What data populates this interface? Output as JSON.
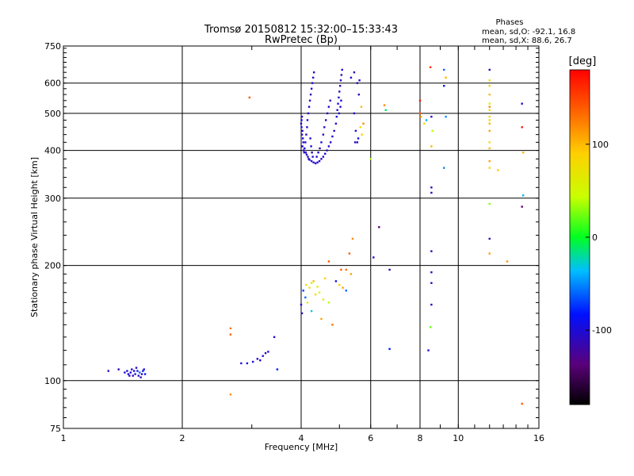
{
  "chart_data": {
    "type": "scatter",
    "title": "Tromsø 20150812 15:32:00–15:33:43",
    "subtitle": "RwPretec (Bp)",
    "info": {
      "heading": "Phases",
      "line1": "mean, sd,O:  -92.1, 16.8",
      "line2": "mean, sd,X:   88.6, 26.7"
    },
    "xlabel": "Frequency [MHz]",
    "ylabel": "Stationary phase Virtual Height [km]",
    "x_scale": "log",
    "y_scale": "log",
    "xlim": [
      1,
      16
    ],
    "ylim": [
      75,
      750
    ],
    "x_ticks": [
      1,
      2,
      4,
      6,
      8,
      10,
      16
    ],
    "y_ticks": [
      75,
      100,
      200,
      300,
      400,
      500,
      600,
      750
    ],
    "grid": true,
    "colorbar": {
      "label": "[deg]",
      "range": [
        -180,
        180
      ],
      "ticks": [
        100,
        0,
        -100
      ]
    },
    "points": [
      [
        1.3,
        106,
        -105
      ],
      [
        1.38,
        107,
        -110
      ],
      [
        1.43,
        105,
        -100
      ],
      [
        1.46,
        104,
        -105
      ],
      [
        1.48,
        105,
        -95
      ],
      [
        1.5,
        103,
        -110
      ],
      [
        1.52,
        104,
        -100
      ],
      [
        1.54,
        106,
        -80
      ],
      [
        1.56,
        105,
        -60
      ],
      [
        1.55,
        103,
        -105
      ],
      [
        1.58,
        104,
        -100
      ],
      [
        1.6,
        107,
        -90
      ],
      [
        1.49,
        107,
        -105
      ],
      [
        1.53,
        108,
        -110
      ],
      [
        1.57,
        102,
        -115
      ],
      [
        1.45,
        106,
        -100
      ],
      [
        1.51,
        106,
        -100
      ],
      [
        1.61,
        104,
        -95
      ],
      [
        1.47,
        103,
        -108
      ],
      [
        1.59,
        106,
        -100
      ],
      [
        2.65,
        137,
        130
      ],
      [
        2.65,
        132,
        140
      ],
      [
        2.65,
        92,
        120
      ],
      [
        2.82,
        111,
        -100
      ],
      [
        2.92,
        111,
        -95
      ],
      [
        3.02,
        112,
        -100
      ],
      [
        3.1,
        114,
        -105
      ],
      [
        3.15,
        113,
        -100
      ],
      [
        3.2,
        116,
        -105
      ],
      [
        3.25,
        118,
        -110
      ],
      [
        3.3,
        119,
        -100
      ],
      [
        3.42,
        130,
        -100
      ],
      [
        3.48,
        107,
        -80
      ],
      [
        2.96,
        550,
        140
      ],
      [
        4.0,
        158,
        -100
      ],
      [
        4.02,
        150,
        -110
      ],
      [
        4.05,
        172,
        -70
      ],
      [
        4.1,
        165,
        -60
      ],
      [
        4.12,
        178,
        80
      ],
      [
        4.15,
        160,
        50
      ],
      [
        4.2,
        175,
        70
      ],
      [
        4.25,
        180,
        60
      ],
      [
        4.3,
        182,
        100
      ],
      [
        4.35,
        168,
        80
      ],
      [
        4.4,
        176,
        60
      ],
      [
        4.45,
        170,
        50
      ],
      [
        4.5,
        145,
        110
      ],
      [
        4.6,
        185,
        90
      ],
      [
        4.7,
        160,
        40
      ],
      [
        4.8,
        140,
        130
      ],
      [
        4.9,
        182,
        -90
      ],
      [
        5.0,
        178,
        90
      ],
      [
        5.1,
        175,
        110
      ],
      [
        5.2,
        195,
        130
      ],
      [
        5.3,
        215,
        140
      ],
      [
        5.35,
        190,
        110
      ],
      [
        5.4,
        235,
        120
      ],
      [
        5.2,
        172,
        -60
      ],
      [
        4.7,
        205,
        140
      ],
      [
        5.05,
        195,
        140
      ],
      [
        4.55,
        163,
        60
      ],
      [
        4.25,
        152,
        -30
      ],
      [
        4.0,
        470,
        -110
      ],
      [
        4.01,
        480,
        -100
      ],
      [
        4.02,
        490,
        -105
      ],
      [
        4.01,
        460,
        -95
      ],
      [
        4.03,
        450,
        -100
      ],
      [
        4.02,
        440,
        -110
      ],
      [
        4.04,
        430,
        -100
      ],
      [
        4.05,
        420,
        -105
      ],
      [
        4.03,
        410,
        -100
      ],
      [
        4.06,
        400,
        -110
      ],
      [
        4.07,
        395,
        -100
      ],
      [
        4.08,
        405,
        -95
      ],
      [
        4.1,
        420,
        -100
      ],
      [
        4.12,
        440,
        -105
      ],
      [
        4.14,
        460,
        -100
      ],
      [
        4.11,
        395,
        -110
      ],
      [
        4.13,
        390,
        -100
      ],
      [
        4.16,
        385,
        -105
      ],
      [
        4.18,
        380,
        -110
      ],
      [
        4.2,
        378,
        -100
      ],
      [
        4.25,
        375,
        -105
      ],
      [
        4.3,
        372,
        -110
      ],
      [
        4.35,
        370,
        -100
      ],
      [
        4.4,
        372,
        -105
      ],
      [
        4.45,
        375,
        -100
      ],
      [
        4.5,
        380,
        -110
      ],
      [
        4.55,
        385,
        -105
      ],
      [
        4.6,
        392,
        -100
      ],
      [
        4.65,
        400,
        -110
      ],
      [
        4.7,
        410,
        -100
      ],
      [
        4.75,
        420,
        -105
      ],
      [
        4.8,
        435,
        -100
      ],
      [
        4.85,
        450,
        -110
      ],
      [
        4.9,
        470,
        -105
      ],
      [
        4.92,
        490,
        -100
      ],
      [
        4.94,
        510,
        -110
      ],
      [
        4.96,
        530,
        -100
      ],
      [
        4.98,
        550,
        -105
      ],
      [
        5.0,
        570,
        -110
      ],
      [
        5.02,
        590,
        -100
      ],
      [
        5.04,
        610,
        -105
      ],
      [
        5.06,
        630,
        -110
      ],
      [
        5.08,
        650,
        -100
      ],
      [
        5.05,
        540,
        -100
      ],
      [
        5.03,
        520,
        -105
      ],
      [
        4.99,
        500,
        -100
      ],
      [
        4.15,
        480,
        -100
      ],
      [
        4.17,
        500,
        -110
      ],
      [
        4.19,
        520,
        -105
      ],
      [
        4.21,
        540,
        -100
      ],
      [
        4.23,
        560,
        -110
      ],
      [
        4.25,
        580,
        -105
      ],
      [
        4.27,
        600,
        -100
      ],
      [
        4.29,
        620,
        -110
      ],
      [
        4.31,
        640,
        -100
      ],
      [
        4.22,
        430,
        -105
      ],
      [
        4.24,
        410,
        -100
      ],
      [
        4.26,
        395,
        -110
      ],
      [
        4.28,
        385,
        -100
      ],
      [
        4.38,
        385,
        -105
      ],
      [
        4.42,
        395,
        -100
      ],
      [
        4.46,
        405,
        -110
      ],
      [
        4.5,
        420,
        -100
      ],
      [
        4.55,
        440,
        -105
      ],
      [
        4.58,
        460,
        -100
      ],
      [
        4.62,
        480,
        -110
      ],
      [
        4.66,
        500,
        -105
      ],
      [
        4.7,
        520,
        -100
      ],
      [
        4.74,
        540,
        -110
      ],
      [
        5.35,
        620,
        -100
      ],
      [
        5.45,
        640,
        -110
      ],
      [
        5.55,
        600,
        -105
      ],
      [
        5.5,
        450,
        -100
      ],
      [
        5.48,
        420,
        -110
      ],
      [
        5.6,
        560,
        -100
      ],
      [
        5.62,
        610,
        -105
      ],
      [
        5.58,
        430,
        -90
      ],
      [
        5.65,
        460,
        80
      ],
      [
        5.75,
        470,
        120
      ],
      [
        5.68,
        520,
        100
      ],
      [
        5.7,
        440,
        90
      ],
      [
        5.55,
        420,
        -110
      ],
      [
        5.45,
        500,
        -105
      ],
      [
        6.0,
        380,
        40
      ],
      [
        6.1,
        210,
        -100
      ],
      [
        6.3,
        252,
        -140
      ],
      [
        6.5,
        525,
        120
      ],
      [
        6.55,
        510,
        -10
      ],
      [
        6.7,
        195,
        -110
      ],
      [
        6.7,
        121,
        -80
      ],
      [
        8.0,
        540,
        170
      ],
      [
        8.0,
        500,
        140
      ],
      [
        8.05,
        490,
        100
      ],
      [
        8.2,
        470,
        80
      ],
      [
        8.5,
        660,
        160
      ],
      [
        8.55,
        490,
        -110
      ],
      [
        8.55,
        410,
        100
      ],
      [
        8.55,
        320,
        -105
      ],
      [
        8.55,
        310,
        -110
      ],
      [
        8.55,
        218,
        -110
      ],
      [
        8.55,
        192,
        -110
      ],
      [
        8.55,
        180,
        -105
      ],
      [
        8.55,
        158,
        -100
      ],
      [
        8.5,
        138,
        20
      ],
      [
        8.4,
        120,
        -100
      ],
      [
        8.3,
        480,
        -40
      ],
      [
        9.2,
        650,
        -60
      ],
      [
        9.3,
        620,
        100
      ],
      [
        9.2,
        590,
        -90
      ],
      [
        9.3,
        490,
        -50
      ],
      [
        9.2,
        360,
        -50
      ],
      [
        8.6,
        450,
        40
      ],
      [
        12.0,
        650,
        -110
      ],
      [
        12.0,
        610,
        80
      ],
      [
        12.0,
        590,
        90
      ],
      [
        12.0,
        560,
        100
      ],
      [
        12.0,
        530,
        60
      ],
      [
        12.0,
        510,
        80
      ],
      [
        12.0,
        490,
        90
      ],
      [
        12.0,
        470,
        100
      ],
      [
        12.0,
        450,
        110
      ],
      [
        12.0,
        420,
        80
      ],
      [
        12.0,
        405,
        100
      ],
      [
        12.0,
        375,
        110
      ],
      [
        12.0,
        360,
        90
      ],
      [
        12.0,
        290,
        30
      ],
      [
        12.0,
        235,
        -110
      ],
      [
        12.0,
        215,
        110
      ],
      [
        12.6,
        355,
        90
      ],
      [
        13.3,
        205,
        115
      ],
      [
        14.5,
        530,
        -105
      ],
      [
        14.5,
        460,
        170
      ],
      [
        14.6,
        395,
        100
      ],
      [
        14.6,
        305,
        -40
      ],
      [
        14.5,
        285,
        -140
      ],
      [
        14.5,
        87,
        140
      ],
      [
        12.0,
        520,
        120
      ],
      [
        12.0,
        480,
        75
      ]
    ]
  }
}
